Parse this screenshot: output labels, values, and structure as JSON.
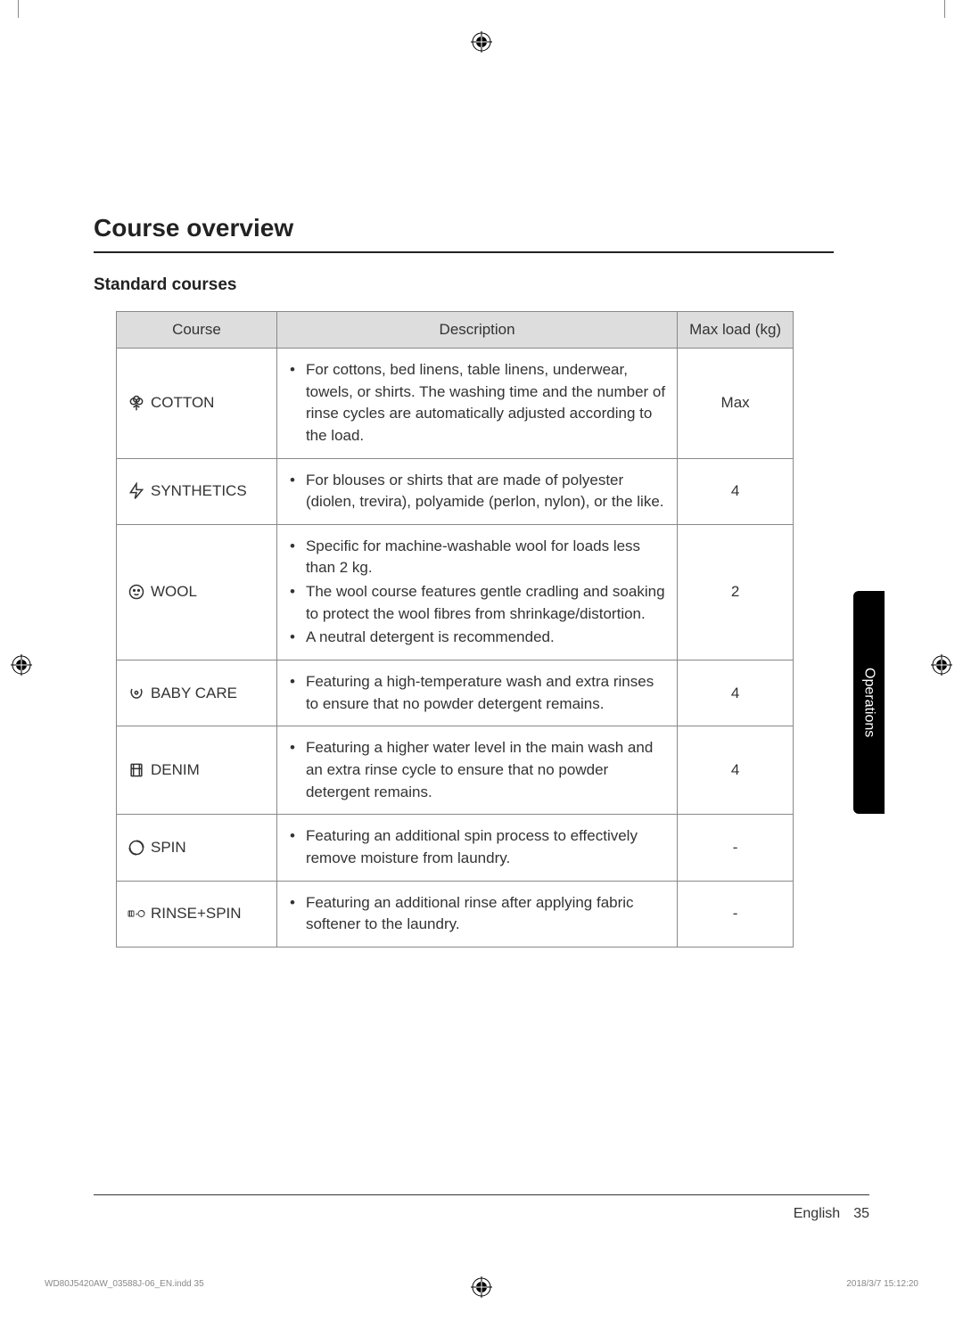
{
  "page": {
    "section_title": "Course overview",
    "sub_heading": "Standard courses",
    "side_tab": "Operations",
    "footer_lang": "English",
    "footer_page": "35",
    "print_left": "WD80J5420AW_03588J-06_EN.indd   35",
    "print_right": "2018/3/7   15:12:20"
  },
  "table": {
    "headers": {
      "course": "Course",
      "description": "Description",
      "max_load": "Max load (kg)"
    },
    "rows": [
      {
        "course_name": "COTTON",
        "icon": "cotton",
        "bullets": [
          "For cottons, bed linens, table linens, underwear, towels, or shirts. The washing time and the number of rinse cycles are automatically adjusted according to the load."
        ],
        "max_load": "Max"
      },
      {
        "course_name": "SYNTHETICS",
        "icon": "synthetics",
        "bullets": [
          "For blouses or shirts that are made of polyester (diolen, trevira), polyamide (perlon, nylon), or the like."
        ],
        "max_load": "4"
      },
      {
        "course_name": " WOOL",
        "icon": "wool",
        "bullets": [
          "Specific for machine-washable wool for loads less than 2 kg.",
          "The wool course features gentle cradling and soaking to protect the wool fibres from shrinkage/distortion.",
          "A neutral detergent is recommended."
        ],
        "max_load": "2"
      },
      {
        "course_name": "BABY CARE",
        "icon": "babycare",
        "bullets": [
          "Featuring a high-temperature wash and extra rinses to ensure that no powder detergent remains."
        ],
        "max_load": "4"
      },
      {
        "course_name": "DENIM",
        "icon": "denim",
        "bullets": [
          "Featuring a higher water level in the main wash and an extra rinse cycle to ensure that no powder detergent remains."
        ],
        "max_load": "4"
      },
      {
        "course_name": "SPIN",
        "icon": "spin",
        "bullets": [
          "Featuring an additional spin process to effectively remove moisture from laundry."
        ],
        "max_load": "-"
      },
      {
        "course_name": "RINSE+SPIN",
        "icon": "rinsespin",
        "bullets": [
          "Featuring an additional rinse after applying fabric softener to the laundry."
        ],
        "max_load": "-"
      }
    ]
  },
  "styling": {
    "header_bg": "#dddddd",
    "border_color": "#888888",
    "text_color": "#333333",
    "tab_bg": "#000000",
    "tab_text": "#ffffff",
    "col_widths": {
      "course": 180,
      "desc": 450,
      "load": 130
    },
    "font_size_body": 17,
    "font_size_title": 28,
    "font_size_sub": 19
  }
}
